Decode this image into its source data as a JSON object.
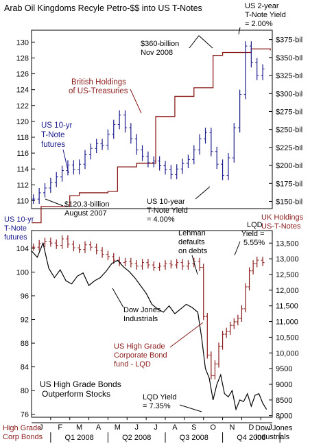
{
  "title": "Arab Oil Kingdoms Recyle Petro-$$ into US T-Notes",
  "colors": {
    "red": "#8b1a1a",
    "blue": "#1a1a8c",
    "black": "#000000",
    "frame": "#000000",
    "text": "#000000"
  },
  "annotations": {
    "us2yr_line1": "US 2-year",
    "us2yr_line2": "T-Note Yield",
    "us2yr_line3": "= 2.00%",
    "b360_line1": "$360-billion",
    "b360_line2": "Nov 2008",
    "british_line1": "British Holdings",
    "british_line2": "of US-Treasuries",
    "tnote_futures_line1": "US 10-yr",
    "tnote_futures_line2": "T-Note",
    "tnote_futures_line3": "futures",
    "b120_line1": "$120.3-billion",
    "b120_line2": "August 2007",
    "yield10_line1": "US 10-year",
    "yield10_line2": "T-Note Yield",
    "yield10_line3": "= 4.00%",
    "uk_holdings_line1": "UK Holdings",
    "uk_holdings_line2": "US-T-Notes",
    "left_tnote_line1": "US 10-yr",
    "left_tnote_line2": "T-Note",
    "left_tnote_line3": "futures",
    "lehman_line1": "Lehman",
    "lehman_line2": "defaults",
    "lehman_line3": "on debts",
    "lqd_top_line1": "LQD",
    "lqd_top_line2": "Yield =",
    "lqd_top_line3": "5.55%",
    "dow_line1": "Dow Jones",
    "dow_line2": "Industrials",
    "lqd_fund_line1": "US High Grade",
    "lqd_fund_line2": "Corporate Bond",
    "lqd_fund_line3": "fund - LQD",
    "outperform_line1": "US High Grade Bonds",
    "outperform_line2": "Outperform Stocks",
    "lqd_bottom_line1": "LQD Yield",
    "lqd_bottom_line2": "= 7.35%",
    "bottom_left_line1": "High Grade",
    "bottom_left_line2": "Corp Bonds",
    "bottom_right_line1": "Dow Jones",
    "bottom_right_line2": "Industrials"
  },
  "x_axis": {
    "months": [
      "J",
      "F",
      "M",
      "A",
      "M",
      "J",
      "J",
      "A",
      "S",
      "O",
      "N",
      "D",
      "J"
    ],
    "quarters": [
      "Q1 2008",
      "Q2 2008",
      "Q3 2008",
      "Q4 2008"
    ]
  },
  "chart_data": [
    {
      "type": "line",
      "title": "Arab Oil Kingdoms Recyle Petro-$$ into US T-Notes",
      "left_axis": {
        "ylim": [
          109,
          131.5
        ],
        "ticks": [
          110,
          112,
          114,
          116,
          118,
          120,
          122,
          124,
          126,
          128,
          130
        ]
      },
      "right_axis": {
        "ylim": [
          140,
          388
        ],
        "ticks": [
          "$150-bil",
          "$175-bil",
          "$200-bil",
          "$225-bil",
          "$250-bil",
          "$275-bil",
          "$300-bil",
          "$325-bil",
          "$350-bil",
          "$375-bil"
        ],
        "values": [
          150,
          175,
          200,
          225,
          250,
          275,
          300,
          325,
          350,
          375
        ]
      },
      "series": [
        {
          "name": "British Holdings of US-Treasuries",
          "axis": "right",
          "color": "#8b1a1a",
          "style": "step",
          "x": [
            0,
            0.5,
            2.0,
            2.5,
            4.0,
            4.5,
            5.5,
            6.5,
            7.5,
            8.5,
            9.5,
            10.0,
            11.5,
            12.5
          ],
          "y": [
            120.3,
            143,
            158,
            162,
            164,
            198,
            203,
            268,
            296,
            308,
            353,
            357,
            362,
            360
          ]
        },
        {
          "name": "US 10-yr T-Note futures",
          "axis": "left",
          "color": "#1a1a8c",
          "style": "ohlc",
          "x": [
            0.1,
            0.4,
            0.7,
            1.0,
            1.3,
            1.6,
            1.9,
            2.2,
            2.5,
            2.8,
            3.1,
            3.4,
            3.7,
            4.0,
            4.3,
            4.6,
            4.9,
            5.2,
            5.5,
            5.8,
            6.1,
            6.4,
            6.7,
            7.0,
            7.3,
            7.6,
            7.9,
            8.2,
            8.5,
            8.8,
            9.1,
            9.4,
            9.7,
            10.0,
            10.3,
            10.6,
            10.9,
            11.2,
            11.5,
            11.8,
            12.1
          ],
          "y": [
            110.2,
            111.0,
            111.6,
            112.3,
            113.0,
            113.8,
            114.5,
            113.9,
            114.6,
            115.8,
            116.6,
            117.2,
            117.0,
            118.4,
            119.6,
            120.8,
            119.2,
            117.8,
            116.4,
            115.6,
            114.8,
            115.0,
            114.4,
            113.9,
            113.3,
            114.0,
            114.7,
            115.2,
            116.4,
            117.8,
            118.6,
            116.2,
            114.6,
            113.2,
            115.4,
            119.2,
            123.4,
            129.5,
            127.4,
            125.8,
            126.6
          ]
        }
      ]
    },
    {
      "type": "line",
      "left_axis": {
        "ylim": [
          75.5,
          107
        ],
        "ticks": [
          76,
          80,
          84,
          88,
          92,
          96,
          100,
          104
        ]
      },
      "right_axis": {
        "ylim": [
          7950,
          13900
        ],
        "ticks": [
          8000,
          8500,
          9000,
          9500,
          10000,
          10500,
          11000,
          11500,
          12000,
          12500,
          13000,
          13500
        ]
      },
      "series": [
        {
          "name": "US High Grade Corporate Bond fund - LQD",
          "axis": "left",
          "color": "#8b1a1a",
          "style": "ohlc",
          "x": [
            0.1,
            0.4,
            0.7,
            1.0,
            1.3,
            1.6,
            1.9,
            2.2,
            2.5,
            2.8,
            3.1,
            3.4,
            3.7,
            4.0,
            4.3,
            4.6,
            4.9,
            5.2,
            5.5,
            5.8,
            6.1,
            6.4,
            6.7,
            7.0,
            7.3,
            7.6,
            7.9,
            8.2,
            8.5,
            8.8,
            9.0,
            9.2,
            9.4,
            9.6,
            9.8,
            10.0,
            10.2,
            10.4,
            10.6,
            10.8,
            11.0,
            11.2,
            11.4,
            11.6,
            11.8,
            12.1
          ],
          "y": [
            104.2,
            104.8,
            105.2,
            104.9,
            104.5,
            105.6,
            104.7,
            104.1,
            103.8,
            104.6,
            104.2,
            103.6,
            103.0,
            102.6,
            102.0,
            101.6,
            101.8,
            101.4,
            101.0,
            101.6,
            101.2,
            100.8,
            101.0,
            101.4,
            101.2,
            101.6,
            101.0,
            101.4,
            101.8,
            100.8,
            92.5,
            86.0,
            82.5,
            84.5,
            87.5,
            89.5,
            90.0,
            91.0,
            91.6,
            92.2,
            93.8,
            97.5,
            100.2,
            101.4,
            102.0,
            101.6
          ]
        },
        {
          "name": "Dow Jones Industrials",
          "axis": "right",
          "color": "#000000",
          "style": "line",
          "x": [
            0.0,
            0.3,
            0.6,
            0.9,
            1.2,
            1.5,
            1.8,
            2.1,
            2.4,
            2.7,
            3.0,
            3.3,
            3.6,
            3.9,
            4.2,
            4.5,
            4.8,
            5.1,
            5.4,
            5.7,
            6.0,
            6.3,
            6.6,
            6.9,
            7.2,
            7.5,
            7.8,
            8.1,
            8.4,
            8.7,
            8.9,
            9.1,
            9.3,
            9.5,
            9.7,
            9.9,
            10.1,
            10.3,
            10.5,
            10.7,
            10.9,
            11.1,
            11.3,
            11.5,
            11.7,
            11.9,
            12.1,
            12.3
          ],
          "y": [
            13250,
            13050,
            13500,
            12700,
            12400,
            12650,
            12300,
            12200,
            12450,
            12550,
            12150,
            12300,
            12400,
            12600,
            12850,
            12950,
            12750,
            12600,
            12400,
            12150,
            11900,
            11550,
            11400,
            11300,
            11500,
            11250,
            11400,
            11550,
            11450,
            11300,
            10500,
            9500,
            9200,
            8500,
            9000,
            9300,
            8700,
            8600,
            8800,
            8200,
            8500,
            8450,
            8700,
            8300,
            8650,
            8700,
            8400,
            8200
          ]
        }
      ]
    }
  ]
}
